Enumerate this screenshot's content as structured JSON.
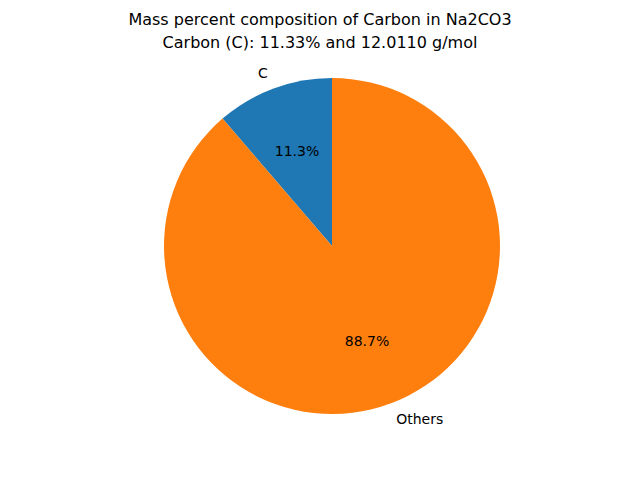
{
  "chart_data": {
    "type": "pie",
    "title": "Mass percent composition of Carbon in Na2CO3",
    "subtitle": "Carbon (C): 11.33% and 12.0110 g/mol",
    "categories": [
      "C",
      "Others"
    ],
    "values": [
      11.3,
      88.7
    ],
    "value_labels": [
      "11.3%",
      "88.7%"
    ],
    "colors": [
      "#1f77b4",
      "#ff7f0e"
    ],
    "data_labels": true
  }
}
